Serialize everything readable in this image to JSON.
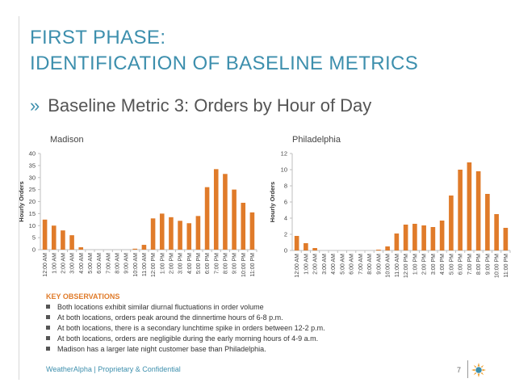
{
  "slide": {
    "title_line1": "FIRST PHASE:",
    "title_line2": "IDENTIFICATION OF BASELINE METRICS",
    "subtitle_bullet": "»",
    "subtitle": "Baseline Metric 3: Orders by Hour of Day",
    "observations_heading": "KEY OBSERVATIONS",
    "observations": [
      "Both locations exhibit similar diurnal fluctuations in order volume",
      "At both locations, orders peak around the dinnertime hours of 6-8 p.m.",
      "At both locations, there is a secondary lunchtime spike in orders between 12-2 p.m.",
      "At both locations, orders are negligible during the early morning hours of 4-9 a.m.",
      "Madison has a larger late night customer base than Philadelphia."
    ],
    "footer": "WeatherAlpha | Proprietary & Confidential",
    "page_number": "7",
    "colors": {
      "accent": "#3d8fad",
      "bar": "#e07b2a",
      "observations_heading": "#e07b2a"
    }
  },
  "chart_data": [
    {
      "type": "bar",
      "title": "Madison",
      "xlabel": "",
      "ylabel": "Hourly Orders",
      "ylim": [
        0,
        40
      ],
      "yticks": [
        0,
        5,
        10,
        15,
        20,
        25,
        30,
        35,
        40
      ],
      "grid": false,
      "categories": [
        "12:00 AM",
        "1:00 AM",
        "2:00 AM",
        "3:00 AM",
        "4:00 AM",
        "5:00 AM",
        "6:00 AM",
        "7:00 AM",
        "8:00 AM",
        "9:00 AM",
        "10:00 AM",
        "11:00 AM",
        "12:00 PM",
        "1:00 PM",
        "2:00 PM",
        "3:00 PM",
        "4:00 PM",
        "5:00 PM",
        "6:00 PM",
        "7:00 PM",
        "8:00 PM",
        "9:00 PM",
        "10:00 PM",
        "11:00 PM"
      ],
      "values": [
        12.5,
        10,
        8,
        6,
        1,
        0,
        0,
        0,
        0,
        0,
        0.4,
        2,
        13,
        15,
        13.5,
        12,
        11,
        14,
        26,
        33.5,
        31.5,
        25,
        19.5,
        15.5
      ]
    },
    {
      "type": "bar",
      "title": "Philadelphia",
      "xlabel": "",
      "ylabel": "Hourly Orders",
      "ylim": [
        0,
        12
      ],
      "yticks": [
        0,
        2,
        4,
        6,
        8,
        10,
        12
      ],
      "grid": false,
      "categories": [
        "12:00 AM",
        "1:00 AM",
        "2:00 AM",
        "3:00 AM",
        "4:00 AM",
        "5:00 AM",
        "6:00 AM",
        "7:00 AM",
        "8:00 AM",
        "9:00 AM",
        "10:00 AM",
        "11:00 AM",
        "12:00 PM",
        "1:00 PM",
        "2:00 PM",
        "3:00 PM",
        "4:00 PM",
        "5:00 PM",
        "6:00 PM",
        "7:00 PM",
        "8:00 PM",
        "9:00 PM",
        "10:00 PM",
        "11:00 PM"
      ],
      "values": [
        1.8,
        0.9,
        0.3,
        0,
        0,
        0,
        0,
        0,
        0,
        0.1,
        0.5,
        2.1,
        3.2,
        3.3,
        3.1,
        2.9,
        3.7,
        6.8,
        10,
        10.9,
        9.8,
        7,
        4.5,
        2.8
      ]
    }
  ]
}
